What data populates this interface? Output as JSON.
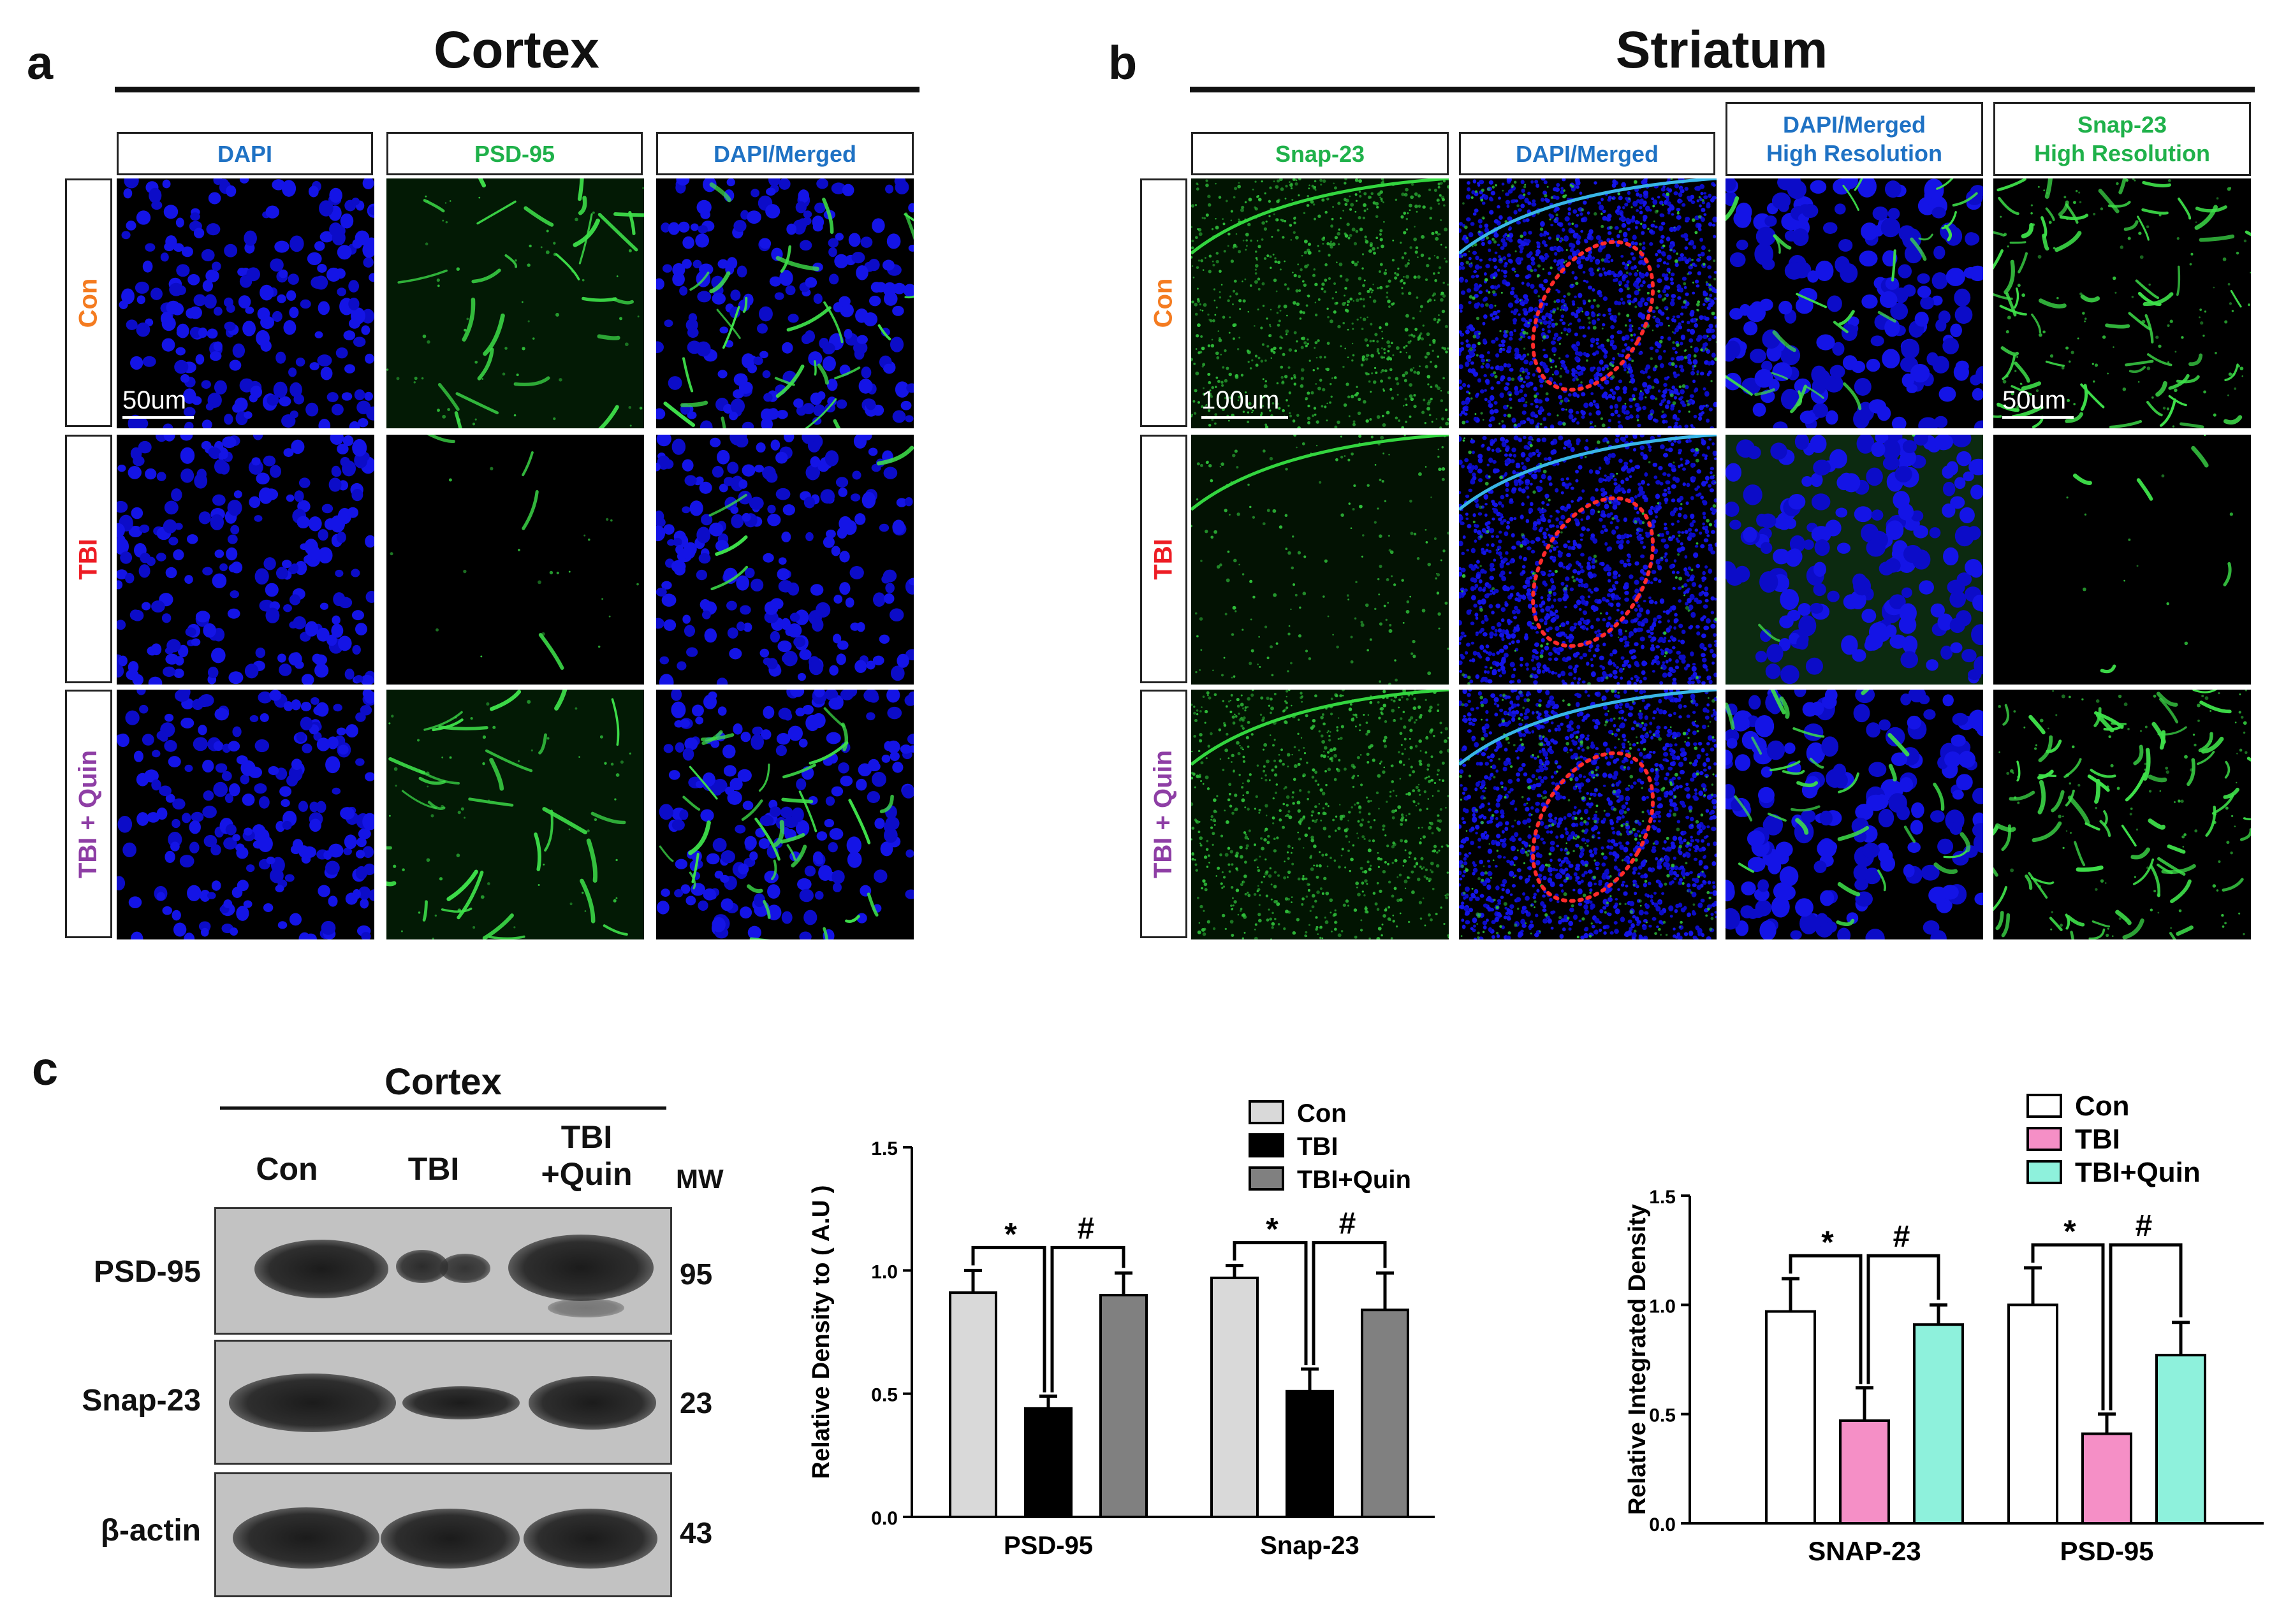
{
  "panel_a": {
    "letter": "a",
    "title": "Cortex",
    "columns": [
      "DAPI",
      "PSD-95",
      "DAPI/Merged"
    ],
    "rows": [
      "Con",
      "TBI",
      "TBI + Quin"
    ],
    "scale_label": "50um"
  },
  "panel_b": {
    "letter": "b",
    "title": "Striatum",
    "columns": [
      "Snap-23",
      "DAPI/Merged",
      "DAPI/Merged\nHigh Resolution",
      "Snap-23\nHigh Resolution"
    ],
    "rows": [
      "Con",
      "TBI",
      "TBI + Quin"
    ],
    "scale_label_left": "100um",
    "scale_label_right": "50um"
  },
  "panel_c": {
    "letter": "c",
    "blot_title": "Cortex",
    "lanes": [
      "Con",
      "TBI",
      "TBI\n+Quin"
    ],
    "mw_header": "MW",
    "rows": [
      {
        "label": "PSD-95",
        "mw": "95"
      },
      {
        "label": "Snap-23",
        "mw": "23"
      },
      {
        "label": "β-actin",
        "mw": "43"
      }
    ]
  },
  "colors": {
    "con_label": "#f47b20",
    "tbi_label": "#ed1c24",
    "quin_label": "#8e3ea5",
    "dapi_label": "#1f72c4",
    "green_label": "#1fb14a",
    "roi": "#ff2a2a",
    "chart1": [
      "#d9d9d9",
      "#000000",
      "#808080"
    ],
    "chart2": [
      "#ffffff",
      "#f58fc6",
      "#8ef1dc"
    ]
  },
  "chart_data": [
    {
      "type": "bar",
      "categories": [
        "PSD-95",
        "Snap-23"
      ],
      "series": [
        {
          "name": "Con",
          "values": [
            0.91,
            0.97
          ],
          "errors": [
            0.09,
            0.05
          ]
        },
        {
          "name": "TBI",
          "values": [
            0.44,
            0.51
          ],
          "errors": [
            0.05,
            0.09
          ]
        },
        {
          "name": "TBI+Quin",
          "values": [
            0.9,
            0.84
          ],
          "errors": [
            0.09,
            0.15
          ]
        }
      ],
      "ylabel": "Relative Density to ( A.U )",
      "ylim": [
        0,
        1.5
      ],
      "yticks": [
        "0.0",
        "0.5",
        "1.0",
        "1.5"
      ],
      "significance": [
        "*",
        "#"
      ],
      "legend": "top-right"
    },
    {
      "type": "bar",
      "categories": [
        "SNAP-23",
        "PSD-95"
      ],
      "series": [
        {
          "name": "Con",
          "values": [
            0.97,
            1.0
          ],
          "errors": [
            0.15,
            0.17
          ]
        },
        {
          "name": "TBI",
          "values": [
            0.47,
            0.41
          ],
          "errors": [
            0.15,
            0.09
          ]
        },
        {
          "name": "TBI+Quin",
          "values": [
            0.91,
            0.77
          ],
          "errors": [
            0.09,
            0.15
          ]
        }
      ],
      "ylabel": "Relative Integrated Density",
      "ylim": [
        0,
        1.5
      ],
      "yticks": [
        "0.0",
        "0.5",
        "1.0",
        "1.5"
      ],
      "significance": [
        "*",
        "#"
      ],
      "legend": "top-right"
    }
  ]
}
